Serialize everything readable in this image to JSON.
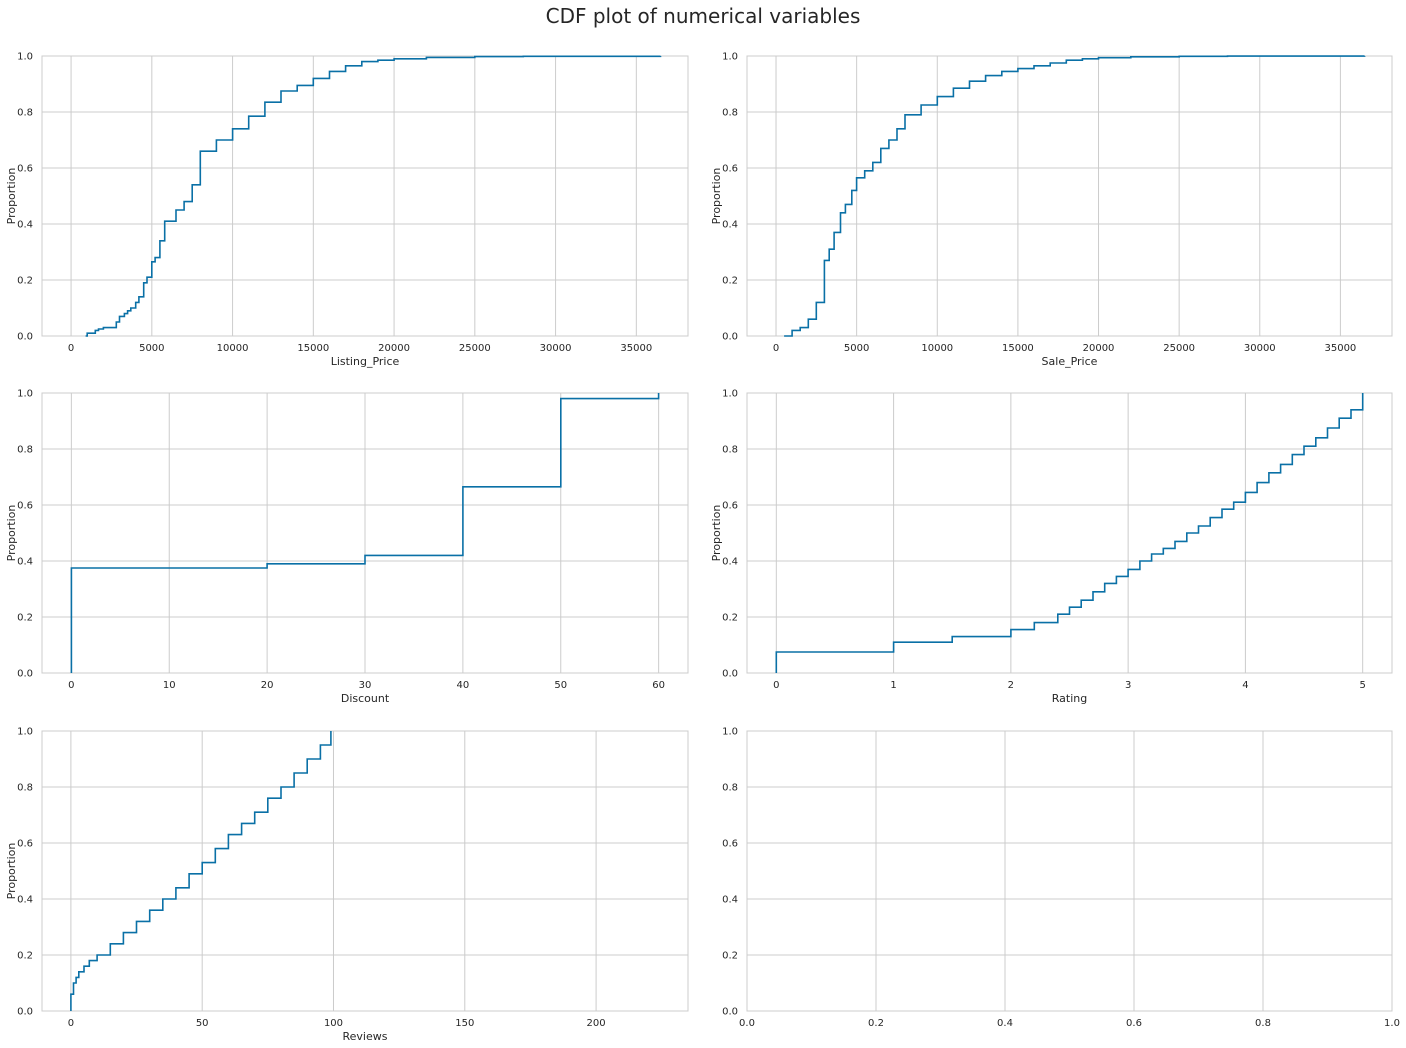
{
  "figure_title": "CDF plot of numerical variables",
  "colors": {
    "line": "#0a70a6",
    "grid": "#cccccc",
    "spine": "#cccccc",
    "background": "#ffffff"
  },
  "chart_data": [
    {
      "type": "line",
      "title": "",
      "xlabel": "Listing_Price",
      "ylabel": "Proportion",
      "xlim": [
        -1800,
        38200
      ],
      "ylim": [
        0,
        1
      ],
      "xticks": [
        0,
        5000,
        10000,
        15000,
        20000,
        25000,
        30000,
        35000
      ],
      "xtick_labels": [
        "0",
        "5000",
        "10000",
        "15000",
        "20000",
        "25000",
        "30000",
        "35000"
      ],
      "yticks": [
        0,
        0.2,
        0.4,
        0.6,
        0.8,
        1
      ],
      "ytick_labels": [
        "0.0",
        "0.2",
        "0.4",
        "0.6",
        "0.8",
        "1.0"
      ],
      "grid": true,
      "step": true,
      "series": [
        {
          "name": "",
          "x": [
            900,
            1000,
            1500,
            1700,
            2000,
            2800,
            3000,
            3300,
            3500,
            3700,
            4000,
            4200,
            4500,
            4700,
            5000,
            5200,
            5500,
            5800,
            6000,
            6500,
            7000,
            7500,
            8000,
            9000,
            10000,
            11000,
            12000,
            13000,
            14000,
            15000,
            16000,
            17000,
            18000,
            19000,
            20000,
            22000,
            25000,
            28000,
            36500
          ],
          "y": [
            0,
            0.01,
            0.02,
            0.025,
            0.03,
            0.05,
            0.07,
            0.08,
            0.09,
            0.1,
            0.12,
            0.14,
            0.19,
            0.21,
            0.265,
            0.28,
            0.34,
            0.41,
            0.41,
            0.45,
            0.48,
            0.54,
            0.66,
            0.7,
            0.74,
            0.785,
            0.835,
            0.875,
            0.895,
            0.92,
            0.945,
            0.965,
            0.98,
            0.985,
            0.99,
            0.995,
            0.998,
            0.999,
            1.0
          ]
        }
      ]
    },
    {
      "type": "line",
      "title": "",
      "xlabel": "Sale_Price",
      "ylabel": "Proportion",
      "xlim": [
        -1800,
        38200
      ],
      "ylim": [
        0,
        1
      ],
      "xticks": [
        0,
        5000,
        10000,
        15000,
        20000,
        25000,
        30000,
        35000
      ],
      "xtick_labels": [
        "0",
        "5000",
        "10000",
        "15000",
        "20000",
        "25000",
        "30000",
        "35000"
      ],
      "yticks": [
        0,
        0.2,
        0.4,
        0.6,
        0.8,
        1
      ],
      "ytick_labels": [
        "0.0",
        "0.2",
        "0.4",
        "0.6",
        "0.8",
        "1.0"
      ],
      "grid": true,
      "step": true,
      "series": [
        {
          "name": "",
          "x": [
            500,
            1000,
            1500,
            2000,
            2500,
            3000,
            3300,
            3600,
            4000,
            4300,
            4700,
            5000,
            5500,
            6000,
            6500,
            7000,
            7500,
            8000,
            9000,
            10000,
            11000,
            12000,
            13000,
            14000,
            15000,
            16000,
            17000,
            18000,
            19000,
            20000,
            22000,
            25000,
            28000,
            36500
          ],
          "y": [
            0,
            0.02,
            0.03,
            0.06,
            0.12,
            0.27,
            0.31,
            0.37,
            0.44,
            0.47,
            0.52,
            0.565,
            0.59,
            0.62,
            0.67,
            0.7,
            0.74,
            0.79,
            0.825,
            0.855,
            0.885,
            0.91,
            0.93,
            0.945,
            0.955,
            0.965,
            0.975,
            0.985,
            0.99,
            0.994,
            0.997,
            0.999,
            0.9995,
            1.0
          ]
        }
      ]
    },
    {
      "type": "line",
      "title": "",
      "xlabel": "Discount",
      "ylabel": "Proportion",
      "xlim": [
        -3,
        63
      ],
      "ylim": [
        0,
        1
      ],
      "xticks": [
        0,
        10,
        20,
        30,
        40,
        50,
        60
      ],
      "xtick_labels": [
        "0",
        "10",
        "20",
        "30",
        "40",
        "50",
        "60"
      ],
      "yticks": [
        0,
        0.2,
        0.4,
        0.6,
        0.8,
        1
      ],
      "ytick_labels": [
        "0.0",
        "0.2",
        "0.4",
        "0.6",
        "0.8",
        "1.0"
      ],
      "grid": true,
      "step": true,
      "series": [
        {
          "name": "",
          "x": [
            0,
            0,
            20,
            30,
            40,
            50,
            60
          ],
          "y": [
            0,
            0.375,
            0.39,
            0.42,
            0.665,
            0.98,
            1.0
          ]
        }
      ]
    },
    {
      "type": "line",
      "title": "",
      "xlabel": "Rating",
      "ylabel": "Proportion",
      "xlim": [
        -0.25,
        5.25
      ],
      "ylim": [
        0,
        1
      ],
      "xticks": [
        0,
        1,
        2,
        3,
        4,
        5
      ],
      "xtick_labels": [
        "0",
        "1",
        "2",
        "3",
        "4",
        "5"
      ],
      "yticks": [
        0,
        0.2,
        0.4,
        0.6,
        0.8,
        1
      ],
      "ytick_labels": [
        "0.0",
        "0.2",
        "0.4",
        "0.6",
        "0.8",
        "1.0"
      ],
      "grid": true,
      "step": true,
      "series": [
        {
          "name": "",
          "x": [
            0,
            0,
            1,
            1.5,
            2,
            2.2,
            2.4,
            2.5,
            2.6,
            2.7,
            2.8,
            2.9,
            3.0,
            3.1,
            3.2,
            3.3,
            3.4,
            3.5,
            3.6,
            3.7,
            3.8,
            3.9,
            4.0,
            4.1,
            4.2,
            4.3,
            4.4,
            4.5,
            4.6,
            4.7,
            4.8,
            4.9,
            5.0
          ],
          "y": [
            0,
            0.075,
            0.11,
            0.13,
            0.155,
            0.18,
            0.21,
            0.235,
            0.26,
            0.29,
            0.32,
            0.345,
            0.37,
            0.4,
            0.425,
            0.445,
            0.47,
            0.5,
            0.525,
            0.555,
            0.585,
            0.61,
            0.645,
            0.68,
            0.715,
            0.745,
            0.78,
            0.81,
            0.84,
            0.875,
            0.91,
            0.94,
            1.0
          ]
        }
      ]
    },
    {
      "type": "line",
      "title": "",
      "xlabel": "Reviews",
      "ylabel": "Proportion",
      "xlim": [
        -11,
        235
      ],
      "ylim": [
        0,
        1
      ],
      "xticks": [
        0,
        50,
        100,
        150,
        200
      ],
      "xtick_labels": [
        "0",
        "50",
        "100",
        "150",
        "200"
      ],
      "yticks": [
        0,
        0.2,
        0.4,
        0.6,
        0.8,
        1
      ],
      "ytick_labels": [
        "0.0",
        "0.2",
        "0.4",
        "0.6",
        "0.8",
        "1.0"
      ],
      "grid": true,
      "step": true,
      "series": [
        {
          "name": "",
          "x": [
            0,
            0,
            1,
            2,
            3,
            5,
            7,
            10,
            15,
            20,
            25,
            30,
            35,
            40,
            45,
            50,
            55,
            60,
            65,
            70,
            75,
            80,
            85,
            90,
            95,
            99
          ],
          "y": [
            0,
            0.06,
            0.1,
            0.12,
            0.14,
            0.16,
            0.18,
            0.2,
            0.24,
            0.28,
            0.32,
            0.36,
            0.4,
            0.44,
            0.49,
            0.53,
            0.58,
            0.63,
            0.67,
            0.71,
            0.76,
            0.8,
            0.85,
            0.9,
            0.95,
            1.0
          ]
        }
      ]
    },
    {
      "type": "line",
      "title": "",
      "xlabel": "",
      "ylabel": "",
      "xlim": [
        0,
        1
      ],
      "ylim": [
        0,
        1
      ],
      "xticks": [
        0,
        0.2,
        0.4,
        0.6,
        0.8,
        1
      ],
      "xtick_labels": [
        "0.0",
        "0.2",
        "0.4",
        "0.6",
        "0.8",
        "1.0"
      ],
      "yticks": [
        0,
        0.2,
        0.4,
        0.6,
        0.8,
        1
      ],
      "ytick_labels": [
        "0.0",
        "0.2",
        "0.4",
        "0.6",
        "0.8",
        "1.0"
      ],
      "grid": true,
      "step": true,
      "series": []
    }
  ]
}
